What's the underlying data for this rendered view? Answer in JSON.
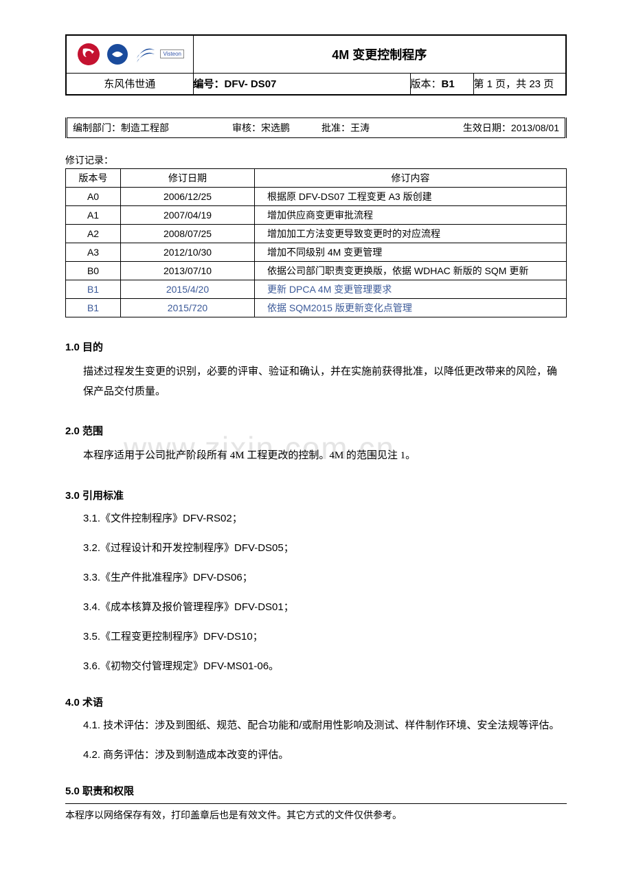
{
  "header": {
    "title": "4M 变更控制程序",
    "company": "东风伟世通",
    "code_label": "编号：",
    "code_value": "DFV- DS07",
    "version_label": "版本：",
    "version_value": "B1",
    "page_text": "第 1 页，共 23 页",
    "visteon_label": "Visteon"
  },
  "info": {
    "dept_label": "编制部门：",
    "dept_value": "制造工程部",
    "review_label": "审核：",
    "review_value": "宋选鹏",
    "approve_label": "批准：",
    "approve_value": "王涛",
    "eff_label": "生效日期：",
    "eff_value": "2013/08/01"
  },
  "revision": {
    "label": "修订记录：",
    "headers": {
      "ver": "版本号",
      "date": "修订日期",
      "content": "修订内容"
    },
    "rows": [
      {
        "ver": "A0",
        "date": "2006/12/25",
        "content": "根据原 DFV-DS07 工程变更 A3 版创建",
        "color": "black"
      },
      {
        "ver": "A1",
        "date": "2007/04/19",
        "content": "增加供应商变更审批流程",
        "color": "black"
      },
      {
        "ver": "A2",
        "date": "2008/07/25",
        "content": "增加加工方法变更导致变更时的对应流程",
        "color": "black"
      },
      {
        "ver": "A3",
        "date": "2012/10/30",
        "content": "增加不同级别 4M 变更管理",
        "color": "black"
      },
      {
        "ver": "B0",
        "date": "2013/07/10",
        "content": "依据公司部门职责变更换版，依据 WDHAC 新版的 SQM 更新",
        "color": "black"
      },
      {
        "ver": "B1",
        "date": "2015/4/20",
        "content": "更新 DPCA 4M 变更管理要求",
        "color": "blue"
      },
      {
        "ver": "B1",
        "date": "2015/720",
        "content": "依据 SQM2015 版更新变化点管理",
        "color": "blue"
      }
    ]
  },
  "sections": {
    "s1": {
      "h": "1.0  目的",
      "p": "描述过程发生变更的识别，必要的评审、验证和确认，并在实施前获得批准，以降低更改带来的风险，确保产品交付质量。"
    },
    "s2": {
      "h": "2.0  范围",
      "p": "本程序适用于公司批产阶段所有 4M 工程更改的控制。4M 的范围见注 1。"
    },
    "s3": {
      "h": "3.0  引用标准"
    },
    "s4": {
      "h": "4.0  术语"
    },
    "s5": {
      "h": "5.0  职责和权限"
    }
  },
  "refs": [
    "3.1.《文件控制程序》DFV-RS02；",
    "3.2.《过程设计和开发控制程序》DFV-DS05；",
    "3.3.《生产件批准程序》DFV-DS06；",
    "3.4.《成本核算及报价管理程序》DFV-DS01；",
    "3.5.《工程变更控制程序》DFV-DS10；",
    "3.6.《初物交付管理规定》DFV-MS01-06。"
  ],
  "terms": [
    "4.1. 技术评估：涉及到图纸、规范、配合功能和/或耐用性影响及测试、样件制作环境、安全法规等评估。",
    "4.2. 商务评估：涉及到制造成本改变的评估。"
  ],
  "watermark": "www.zixin.com.cn",
  "footer": "本程序以网络保存有效，打印盖章后也是有效文件。其它方式的文件仅供参考。"
}
